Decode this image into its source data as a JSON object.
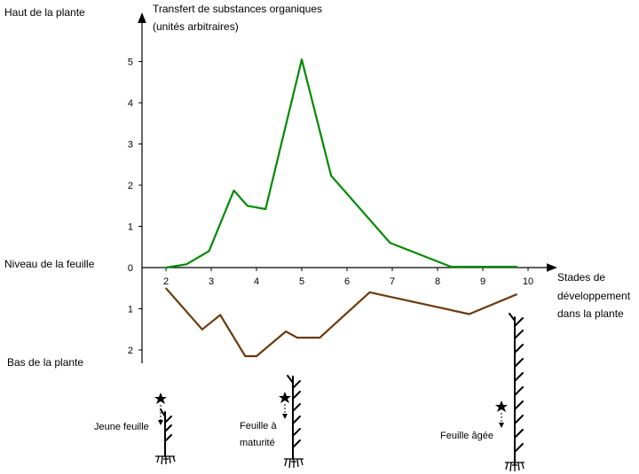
{
  "chart_data": {
    "type": "line",
    "title": "",
    "ylabel_top": "Transfert de substances organiques (unités arbitraires)",
    "ylabel_top_lines": [
      "Transfert de substances organiques",
      "(unités arbitraires)"
    ],
    "xlabel": "Stades de développement dans la plante",
    "xlabel_lines": [
      "Stades de",
      "développement",
      "dans la plante"
    ],
    "x_ticks": [
      "2",
      "3",
      "4",
      "5",
      "6",
      "7",
      "8",
      "9",
      "10"
    ],
    "y_ticks_up": [
      "0",
      "1",
      "2",
      "3",
      "4",
      "5"
    ],
    "y_ticks_down": [
      "1",
      "2"
    ],
    "xlim": [
      1.95,
      10.5
    ],
    "ylim": [
      -2.2,
      5.8
    ],
    "grid": false,
    "series": [
      {
        "color": "#008a00",
        "x": [
          2.0,
          2.45,
          2.95,
          3.5,
          3.8,
          4.2,
          5.0,
          5.65,
          6.95,
          8.3,
          9.0,
          9.75
        ],
        "y": [
          0.0,
          0.08,
          0.4,
          1.87,
          1.5,
          1.42,
          5.05,
          2.23,
          0.6,
          0.02,
          0.02,
          0.02
        ]
      },
      {
        "color": "#6b3a0c",
        "x": [
          2.0,
          2.8,
          3.2,
          3.75,
          4.0,
          4.65,
          4.9,
          5.4,
          6.5,
          8.7,
          9.75
        ],
        "y": [
          -0.5,
          -1.5,
          -1.15,
          -2.15,
          -2.15,
          -1.55,
          -1.7,
          -1.7,
          -0.6,
          -1.13,
          -0.65
        ]
      }
    ],
    "side_labels": {
      "top": "Haut de la plante",
      "middle": "Niveau de la feuille",
      "bottom": "Bas de la plante"
    }
  },
  "illustrations": [
    {
      "label": "Jeune feuille",
      "lines": [
        "Jeune feuille"
      ]
    },
    {
      "label": "Feuille à maturité",
      "lines": [
        "Feuille à",
        "maturité"
      ]
    },
    {
      "label": "Feuille âgée",
      "lines": [
        "Feuille âgée"
      ]
    }
  ]
}
